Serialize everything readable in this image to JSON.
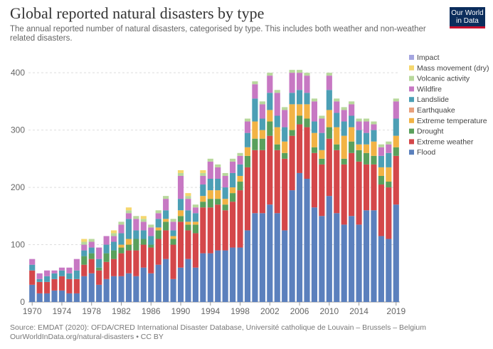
{
  "header": {
    "title": "Global reported natural disasters by type",
    "subtitle": "The annual reported number of natural disasters, categorised by type. This includes both weather and non-weather related disasters.",
    "logo_line1": "Our World",
    "logo_line2": "in Data"
  },
  "footer": {
    "source": "Source: EMDAT (2020): OFDA/CRED International Disaster Database, Université catholique de Louvain – Brussels – Belgium",
    "url": "OurWorldInData.org/natural-disasters • CC BY"
  },
  "chart_data": {
    "type": "bar",
    "stacked": true,
    "title": "Global reported natural disasters by type",
    "xlabel": "",
    "ylabel": "",
    "ylim": [
      0,
      430
    ],
    "yticks": [
      0,
      100,
      200,
      300,
      400
    ],
    "xticks": [
      "1970",
      "1974",
      "1978",
      "1982",
      "1986",
      "1990",
      "1994",
      "1998",
      "2002",
      "2006",
      "2010",
      "2014",
      "2019"
    ],
    "grid": "horizontal-dashed",
    "legend_position": "right",
    "categories": [
      "1970",
      "1971",
      "1972",
      "1973",
      "1974",
      "1975",
      "1976",
      "1977",
      "1978",
      "1979",
      "1980",
      "1981",
      "1982",
      "1983",
      "1984",
      "1985",
      "1986",
      "1987",
      "1988",
      "1989",
      "1990",
      "1991",
      "1992",
      "1993",
      "1994",
      "1995",
      "1996",
      "1997",
      "1998",
      "1999",
      "2000",
      "2001",
      "2002",
      "2003",
      "2004",
      "2005",
      "2006",
      "2007",
      "2008",
      "2009",
      "2010",
      "2011",
      "2012",
      "2013",
      "2014",
      "2015",
      "2016",
      "2017",
      "2018",
      "2019"
    ],
    "legend_order": [
      "Impact",
      "Mass movement (dry)",
      "Volcanic activity",
      "Wildfire",
      "Landslide",
      "Earthquake",
      "Extreme temperature",
      "Drought",
      "Extreme weather",
      "Flood"
    ],
    "colors": {
      "Impact": "#a4a5e0",
      "Mass movement (dry)": "#f5d76e",
      "Volcanic activity": "#b8d89c",
      "Wildfire": "#c778c3",
      "Landslide": "#4c9fb5",
      "Earthquake": "#e8a07c",
      "Extreme temperature": "#f2b345",
      "Drought": "#5aa05c",
      "Extreme weather": "#d4474a",
      "Flood": "#5b80bd"
    },
    "series": [
      {
        "name": "Flood",
        "values": [
          30,
          15,
          15,
          20,
          20,
          15,
          15,
          45,
          50,
          30,
          40,
          45,
          45,
          50,
          45,
          60,
          50,
          65,
          75,
          40,
          60,
          75,
          60,
          85,
          85,
          90,
          90,
          95,
          95,
          125,
          155,
          155,
          170,
          155,
          125,
          195,
          225,
          215,
          165,
          150,
          185,
          155,
          135,
          150,
          135,
          160,
          160,
          115,
          110,
          170
        ]
      },
      {
        "name": "Extreme weather",
        "values": [
          25,
          20,
          20,
          20,
          25,
          25,
          25,
          20,
          25,
          25,
          30,
          30,
          40,
          40,
          45,
          40,
          45,
          45,
          50,
          60,
          80,
          50,
          60,
          80,
          80,
          80,
          70,
          80,
          100,
          110,
          110,
          110,
          120,
          110,
          125,
          95,
          85,
          90,
          95,
          90,
          100,
          110,
          105,
          110,
          110,
          80,
          80,
          90,
          90,
          85
        ]
      },
      {
        "name": "Drought",
        "values": [
          0,
          0,
          0,
          0,
          0,
          0,
          0,
          15,
          10,
          5,
          15,
          15,
          10,
          10,
          20,
          10,
          5,
          15,
          15,
          10,
          10,
          10,
          15,
          10,
          15,
          10,
          10,
          15,
          15,
          20,
          20,
          20,
          25,
          10,
          10,
          10,
          15,
          15,
          10,
          10,
          20,
          10,
          10,
          20,
          20,
          20,
          15,
          15,
          10,
          15
        ]
      },
      {
        "name": "Extreme temperature",
        "values": [
          0,
          0,
          0,
          0,
          0,
          0,
          0,
          0,
          0,
          0,
          0,
          0,
          5,
          10,
          0,
          0,
          0,
          5,
          5,
          5,
          10,
          5,
          5,
          10,
          15,
          15,
          10,
          10,
          10,
          15,
          30,
          15,
          20,
          30,
          20,
          45,
          20,
          25,
          25,
          15,
          30,
          30,
          40,
          25,
          10,
          15,
          25,
          15,
          25,
          20
        ]
      },
      {
        "name": "Earthquake",
        "values": [
          0,
          0,
          0,
          0,
          0,
          0,
          0,
          0,
          0,
          0,
          0,
          0,
          0,
          0,
          0,
          0,
          0,
          0,
          0,
          0,
          0,
          0,
          0,
          0,
          0,
          0,
          0,
          0,
          0,
          0,
          0,
          0,
          0,
          0,
          0,
          0,
          0,
          0,
          0,
          0,
          0,
          0,
          0,
          0,
          0,
          0,
          0,
          0,
          0,
          0
        ]
      },
      {
        "name": "Landslide",
        "values": [
          10,
          5,
          10,
          10,
          10,
          10,
          15,
          10,
          10,
          15,
          15,
          15,
          20,
          35,
          15,
          15,
          15,
          15,
          15,
          10,
          20,
          20,
          15,
          20,
          20,
          20,
          20,
          25,
          20,
          25,
          40,
          20,
          30,
          20,
          25,
          20,
          25,
          20,
          20,
          30,
          35,
          25,
          25,
          20,
          25,
          20,
          20,
          20,
          25,
          30
        ]
      },
      {
        "name": "Wildfire",
        "values": [
          10,
          10,
          10,
          5,
          5,
          10,
          20,
          10,
          10,
          20,
          15,
          10,
          15,
          10,
          20,
          15,
          15,
          10,
          20,
          15,
          40,
          20,
          10,
          15,
          30,
          20,
          20,
          20,
          15,
          20,
          25,
          25,
          30,
          40,
          30,
          35,
          30,
          30,
          35,
          25,
          25,
          20,
          20,
          20,
          15,
          20,
          10,
          15,
          15,
          30
        ]
      },
      {
        "name": "Volcanic activity",
        "values": [
          0,
          0,
          0,
          0,
          0,
          0,
          0,
          5,
          5,
          0,
          0,
          5,
          5,
          5,
          5,
          5,
          5,
          5,
          5,
          5,
          5,
          5,
          5,
          5,
          5,
          5,
          5,
          5,
          5,
          5,
          5,
          5,
          5,
          5,
          5,
          5,
          5,
          5,
          5,
          5,
          5,
          5,
          5,
          5,
          5,
          5,
          5,
          5,
          5,
          5
        ]
      },
      {
        "name": "Mass movement (dry)",
        "values": [
          0,
          0,
          0,
          0,
          0,
          0,
          0,
          5,
          0,
          0,
          0,
          5,
          0,
          5,
          0,
          5,
          0,
          0,
          0,
          0,
          5,
          5,
          0,
          5,
          0,
          0,
          0,
          0,
          0,
          0,
          0,
          0,
          0,
          0,
          0,
          0,
          0,
          0,
          0,
          0,
          0,
          0,
          0,
          0,
          0,
          0,
          0,
          0,
          0,
          0
        ]
      },
      {
        "name": "Impact",
        "values": [
          0,
          0,
          0,
          0,
          0,
          0,
          0,
          0,
          0,
          0,
          0,
          0,
          0,
          0,
          0,
          0,
          0,
          0,
          0,
          0,
          0,
          0,
          0,
          0,
          0,
          0,
          0,
          0,
          0,
          0,
          0,
          0,
          0,
          0,
          0,
          0,
          0,
          0,
          0,
          0,
          0,
          0,
          0,
          0,
          0,
          0,
          0,
          0,
          0,
          0
        ]
      }
    ]
  }
}
